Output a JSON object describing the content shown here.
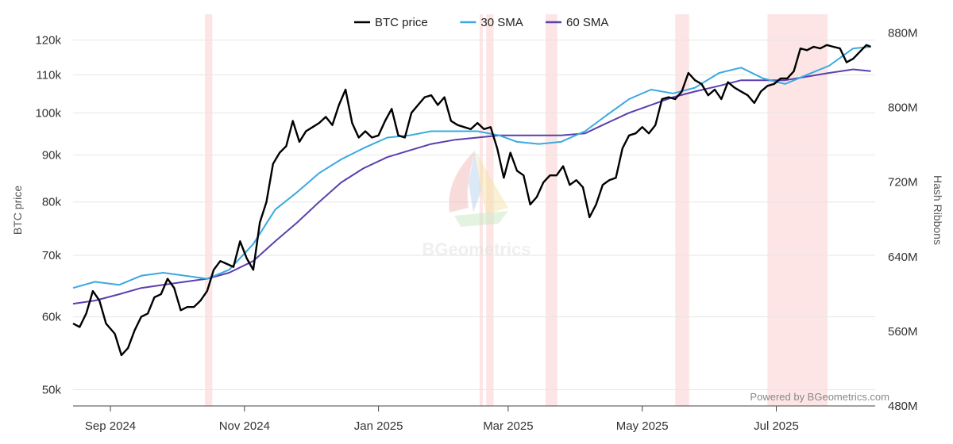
{
  "chart_data": {
    "type": "line",
    "title": "",
    "credit": "Powered by BGeometrics.com",
    "watermark": "BGeometrics",
    "legend": {
      "position": "top-center",
      "items": [
        {
          "label": "BTC price",
          "color": "#000000"
        },
        {
          "label": "30 SMA",
          "color": "#3aa9e0"
        },
        {
          "label": "60 SMA",
          "color": "#5b3fae"
        }
      ]
    },
    "y_left": {
      "label": "BTC price",
      "scale": "log",
      "range": [
        48000,
        128000
      ],
      "ticks": [
        {
          "value": 50000,
          "label": "50k"
        },
        {
          "value": 60000,
          "label": "60k"
        },
        {
          "value": 70000,
          "label": "70k"
        },
        {
          "value": 80000,
          "label": "80k"
        },
        {
          "value": 90000,
          "label": "90k"
        },
        {
          "value": 100000,
          "label": "100k"
        },
        {
          "value": 110000,
          "label": "110k"
        },
        {
          "value": 120000,
          "label": "120k"
        }
      ]
    },
    "y_right": {
      "label": "Hash Ribbons",
      "range": [
        480000000,
        900000000
      ],
      "ticks": [
        {
          "value": 480000000,
          "label": "480M"
        },
        {
          "value": 560000000,
          "label": "560M"
        },
        {
          "value": 640000000,
          "label": "640M"
        },
        {
          "value": 720000000,
          "label": "720M"
        },
        {
          "value": 800000000,
          "label": "800M"
        },
        {
          "value": 880000000,
          "label": "880M"
        }
      ]
    },
    "x_axis": {
      "range": [
        "2024-08-15",
        "2025-08-15"
      ],
      "ticks": [
        {
          "date": "2024-09-01",
          "label": "Sep 2024"
        },
        {
          "date": "2024-11-01",
          "label": "Nov 2024"
        },
        {
          "date": "2025-01-01",
          "label": "Jan 2025"
        },
        {
          "date": "2025-03-01",
          "label": "Mar 2025"
        },
        {
          "date": "2025-05-01",
          "label": "May 2025"
        },
        {
          "date": "2025-07-01",
          "label": "Jul 2025"
        }
      ]
    },
    "grid": true,
    "capitulation_bands": [
      {
        "start": "2024-10-14",
        "end": "2024-10-17",
        "color": "#fde0e0"
      },
      {
        "start": "2025-02-16",
        "end": "2025-02-17",
        "color": "#fde0e0"
      },
      {
        "start": "2025-02-19",
        "end": "2025-02-22",
        "color": "#fde0e0"
      },
      {
        "start": "2025-03-18",
        "end": "2025-03-23",
        "color": "#fde0e0"
      },
      {
        "start": "2025-05-16",
        "end": "2025-05-22",
        "color": "#fde0e0"
      },
      {
        "start": "2025-06-27",
        "end": "2025-07-24",
        "color": "#fde0e0"
      }
    ],
    "series": [
      {
        "name": "BTC price",
        "color": "#000000",
        "points": [
          [
            "2024-08-15",
            59000
          ],
          [
            "2024-08-18",
            58500
          ],
          [
            "2024-08-21",
            60500
          ],
          [
            "2024-08-24",
            64000
          ],
          [
            "2024-08-27",
            62500
          ],
          [
            "2024-08-30",
            59000
          ],
          [
            "2024-09-03",
            57500
          ],
          [
            "2024-09-06",
            54500
          ],
          [
            "2024-09-09",
            55500
          ],
          [
            "2024-09-12",
            58000
          ],
          [
            "2024-09-15",
            60000
          ],
          [
            "2024-09-18",
            60500
          ],
          [
            "2024-09-21",
            63000
          ],
          [
            "2024-09-24",
            63500
          ],
          [
            "2024-09-27",
            66000
          ],
          [
            "2024-09-30",
            64500
          ],
          [
            "2024-10-03",
            61000
          ],
          [
            "2024-10-06",
            61500
          ],
          [
            "2024-10-09",
            61500
          ],
          [
            "2024-10-12",
            62500
          ],
          [
            "2024-10-15",
            64000
          ],
          [
            "2024-10-18",
            67500
          ],
          [
            "2024-10-21",
            69000
          ],
          [
            "2024-10-24",
            68500
          ],
          [
            "2024-10-27",
            68000
          ],
          [
            "2024-10-30",
            72500
          ],
          [
            "2024-11-02",
            69500
          ],
          [
            "2024-11-05",
            67500
          ],
          [
            "2024-11-08",
            76000
          ],
          [
            "2024-11-11",
            80000
          ],
          [
            "2024-11-14",
            88000
          ],
          [
            "2024-11-17",
            90500
          ],
          [
            "2024-11-20",
            92000
          ],
          [
            "2024-11-23",
            98000
          ],
          [
            "2024-11-26",
            93000
          ],
          [
            "2024-11-29",
            95500
          ],
          [
            "2024-12-02",
            96500
          ],
          [
            "2024-12-05",
            97500
          ],
          [
            "2024-12-08",
            99000
          ],
          [
            "2024-12-11",
            97000
          ],
          [
            "2024-12-14",
            102000
          ],
          [
            "2024-12-17",
            106000
          ],
          [
            "2024-12-20",
            97500
          ],
          [
            "2024-12-23",
            94000
          ],
          [
            "2024-12-26",
            95500
          ],
          [
            "2024-12-29",
            94000
          ],
          [
            "2025-01-01",
            94500
          ],
          [
            "2025-01-04",
            98000
          ],
          [
            "2025-01-07",
            101000
          ],
          [
            "2025-01-10",
            94500
          ],
          [
            "2025-01-13",
            94000
          ],
          [
            "2025-01-16",
            100000
          ],
          [
            "2025-01-19",
            102000
          ],
          [
            "2025-01-22",
            104000
          ],
          [
            "2025-01-25",
            104500
          ],
          [
            "2025-01-28",
            102000
          ],
          [
            "2025-01-31",
            104000
          ],
          [
            "2025-02-03",
            98000
          ],
          [
            "2025-02-06",
            97000
          ],
          [
            "2025-02-09",
            96500
          ],
          [
            "2025-02-12",
            96000
          ],
          [
            "2025-02-15",
            97500
          ],
          [
            "2025-02-18",
            96000
          ],
          [
            "2025-02-21",
            96500
          ],
          [
            "2025-02-24",
            91500
          ],
          [
            "2025-02-27",
            85000
          ],
          [
            "2025-03-02",
            90500
          ],
          [
            "2025-03-05",
            86500
          ],
          [
            "2025-03-08",
            85500
          ],
          [
            "2025-03-11",
            79500
          ],
          [
            "2025-03-14",
            81000
          ],
          [
            "2025-03-17",
            84000
          ],
          [
            "2025-03-20",
            85500
          ],
          [
            "2025-03-23",
            85500
          ],
          [
            "2025-03-26",
            87500
          ],
          [
            "2025-03-29",
            83500
          ],
          [
            "2025-04-01",
            84500
          ],
          [
            "2025-04-04",
            83000
          ],
          [
            "2025-04-07",
            77000
          ],
          [
            "2025-04-10",
            79500
          ],
          [
            "2025-04-13",
            83500
          ],
          [
            "2025-04-16",
            84500
          ],
          [
            "2025-04-19",
            85000
          ],
          [
            "2025-04-22",
            91500
          ],
          [
            "2025-04-25",
            94500
          ],
          [
            "2025-04-28",
            95000
          ],
          [
            "2025-05-01",
            96500
          ],
          [
            "2025-05-04",
            95000
          ],
          [
            "2025-05-07",
            97000
          ],
          [
            "2025-05-10",
            103500
          ],
          [
            "2025-05-13",
            104000
          ],
          [
            "2025-05-16",
            103500
          ],
          [
            "2025-05-19",
            105500
          ],
          [
            "2025-05-22",
            110500
          ],
          [
            "2025-05-25",
            108500
          ],
          [
            "2025-05-28",
            107500
          ],
          [
            "2025-05-31",
            104500
          ],
          [
            "2025-06-03",
            106000
          ],
          [
            "2025-06-06",
            103500
          ],
          [
            "2025-06-09",
            108000
          ],
          [
            "2025-06-12",
            106500
          ],
          [
            "2025-06-15",
            105500
          ],
          [
            "2025-06-18",
            104500
          ],
          [
            "2025-06-21",
            102500
          ],
          [
            "2025-06-24",
            105500
          ],
          [
            "2025-06-27",
            107000
          ],
          [
            "2025-06-30",
            107500
          ],
          [
            "2025-07-03",
            109000
          ],
          [
            "2025-07-06",
            109000
          ],
          [
            "2025-07-09",
            111000
          ],
          [
            "2025-07-12",
            117500
          ],
          [
            "2025-07-15",
            117000
          ],
          [
            "2025-07-18",
            118000
          ],
          [
            "2025-07-21",
            117500
          ],
          [
            "2025-07-24",
            118500
          ],
          [
            "2025-07-27",
            118000
          ],
          [
            "2025-07-30",
            117500
          ],
          [
            "2025-08-02",
            113500
          ],
          [
            "2025-08-05",
            114500
          ],
          [
            "2025-08-08",
            116500
          ],
          [
            "2025-08-11",
            118500
          ],
          [
            "2025-08-13",
            118000
          ]
        ]
      },
      {
        "name": "30 SMA",
        "color": "#3aa9e0",
        "points": [
          [
            "2024-08-15",
            64500
          ],
          [
            "2024-08-25",
            65500
          ],
          [
            "2024-09-05",
            65000
          ],
          [
            "2024-09-15",
            66500
          ],
          [
            "2024-09-25",
            67000
          ],
          [
            "2024-10-05",
            66500
          ],
          [
            "2024-10-15",
            66000
          ],
          [
            "2024-10-25",
            67500
          ],
          [
            "2024-11-05",
            72000
          ],
          [
            "2024-11-15",
            78500
          ],
          [
            "2024-11-25",
            82000
          ],
          [
            "2024-12-05",
            86000
          ],
          [
            "2024-12-15",
            89000
          ],
          [
            "2024-12-25",
            91500
          ],
          [
            "2025-01-05",
            94000
          ],
          [
            "2025-01-15",
            94500
          ],
          [
            "2025-01-25",
            95500
          ],
          [
            "2025-02-05",
            95500
          ],
          [
            "2025-02-15",
            95500
          ],
          [
            "2025-02-25",
            94500
          ],
          [
            "2025-03-05",
            93000
          ],
          [
            "2025-03-15",
            92500
          ],
          [
            "2025-03-25",
            93000
          ],
          [
            "2025-04-05",
            95500
          ],
          [
            "2025-04-15",
            99500
          ],
          [
            "2025-04-25",
            103500
          ],
          [
            "2025-05-05",
            106000
          ],
          [
            "2025-05-15",
            105000
          ],
          [
            "2025-05-25",
            106500
          ],
          [
            "2025-06-05",
            110500
          ],
          [
            "2025-06-15",
            112000
          ],
          [
            "2025-06-25",
            109000
          ],
          [
            "2025-07-05",
            107500
          ],
          [
            "2025-07-15",
            110000
          ],
          [
            "2025-07-25",
            112500
          ],
          [
            "2025-08-05",
            117500
          ],
          [
            "2025-08-13",
            118000
          ]
        ]
      },
      {
        "name": "60 SMA",
        "color": "#5b3fae",
        "points": [
          [
            "2024-08-15",
            62000
          ],
          [
            "2024-08-25",
            62500
          ],
          [
            "2024-09-05",
            63500
          ],
          [
            "2024-09-15",
            64500
          ],
          [
            "2024-09-25",
            65000
          ],
          [
            "2024-10-05",
            65500
          ],
          [
            "2024-10-15",
            66000
          ],
          [
            "2024-10-25",
            67000
          ],
          [
            "2024-11-05",
            69000
          ],
          [
            "2024-11-15",
            72500
          ],
          [
            "2024-11-25",
            76000
          ],
          [
            "2024-12-05",
            80000
          ],
          [
            "2024-12-15",
            84000
          ],
          [
            "2024-12-25",
            87000
          ],
          [
            "2025-01-05",
            89500
          ],
          [
            "2025-01-15",
            91000
          ],
          [
            "2025-01-25",
            92500
          ],
          [
            "2025-02-05",
            93500
          ],
          [
            "2025-02-15",
            94000
          ],
          [
            "2025-02-25",
            94500
          ],
          [
            "2025-03-05",
            94500
          ],
          [
            "2025-03-15",
            94500
          ],
          [
            "2025-03-25",
            94500
          ],
          [
            "2025-04-05",
            95000
          ],
          [
            "2025-04-15",
            97500
          ],
          [
            "2025-04-25",
            100000
          ],
          [
            "2025-05-05",
            102000
          ],
          [
            "2025-05-15",
            104000
          ],
          [
            "2025-05-25",
            105500
          ],
          [
            "2025-06-05",
            107000
          ],
          [
            "2025-06-15",
            108500
          ],
          [
            "2025-06-25",
            108500
          ],
          [
            "2025-07-05",
            108500
          ],
          [
            "2025-07-15",
            109500
          ],
          [
            "2025-07-25",
            110500
          ],
          [
            "2025-08-05",
            111500
          ],
          [
            "2025-08-13",
            111000
          ]
        ]
      }
    ]
  }
}
